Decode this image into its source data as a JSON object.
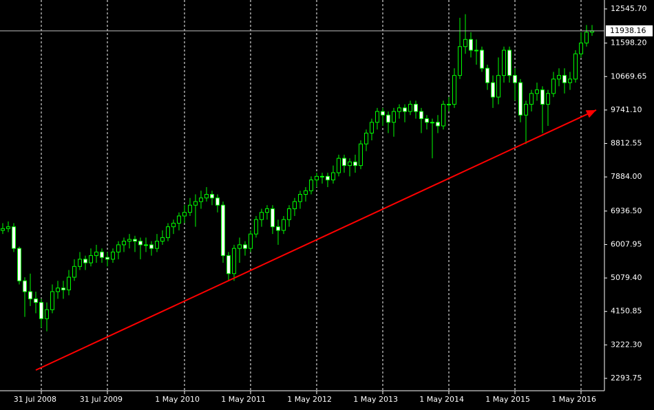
{
  "chart_data": {
    "type": "candlestick",
    "categories": [
      null,
      null,
      null,
      null,
      null,
      null,
      null,
      "31 Jul 2008",
      null,
      null,
      null,
      null,
      null,
      null,
      null,
      null,
      null,
      null,
      null,
      "31 Jul 2009",
      null,
      null,
      null,
      null,
      null,
      null,
      null,
      null,
      null,
      null,
      null,
      null,
      null,
      "1 May 2010",
      null,
      null,
      null,
      null,
      null,
      null,
      null,
      null,
      null,
      null,
      null,
      "1 May 2011",
      null,
      null,
      null,
      null,
      null,
      null,
      null,
      null,
      null,
      null,
      null,
      "1 May 2012",
      null,
      null,
      null,
      null,
      null,
      null,
      null,
      null,
      null,
      null,
      null,
      "1 May 2013",
      null,
      null,
      null,
      null,
      null,
      null,
      null,
      null,
      null,
      null,
      null,
      "1 May 2014",
      null,
      null,
      null,
      null,
      null,
      null,
      null,
      null,
      null,
      null,
      null,
      "1 May 2015",
      null,
      null,
      null,
      null,
      null,
      null,
      null,
      null,
      null,
      null,
      null,
      "1 May 2016",
      null,
      null
    ],
    "open": [
      6400,
      6450,
      6500,
      5900,
      5000,
      4700,
      4500,
      4400,
      3950,
      4200,
      4700,
      4800,
      4750,
      5100,
      5400,
      5600,
      5500,
      5700,
      5800,
      5650,
      5600,
      5800,
      6000,
      6100,
      6150,
      6100,
      6000,
      6000,
      5900,
      6100,
      6200,
      6500,
      6600,
      6800,
      6900,
      7100,
      7200,
      7300,
      7400,
      7300,
      7100,
      5700,
      5200,
      5900,
      6000,
      5900,
      6300,
      6700,
      6900,
      7000,
      6500,
      6400,
      6700,
      7000,
      7200,
      7400,
      7500,
      7800,
      7900,
      7900,
      7800,
      8000,
      8400,
      8200,
      8300,
      8200,
      8800,
      9100,
      9400,
      9700,
      9600,
      9400,
      9700,
      9800,
      9700,
      9900,
      9700,
      9500,
      9400,
      9400,
      9300,
      9900,
      9900,
      10700,
      11500,
      11700,
      11400,
      11400,
      10900,
      10500,
      10100,
      10700,
      11400,
      10700,
      10500,
      9600,
      9900,
      10200,
      10300,
      9900,
      10200,
      10600,
      10700,
      10500,
      10600,
      11300,
      11600,
      11900
    ],
    "high": [
      6600,
      6650,
      6600,
      5950,
      5100,
      5200,
      4700,
      4500,
      4400,
      4900,
      5000,
      5000,
      5300,
      5600,
      5800,
      5700,
      5900,
      6000,
      5900,
      5800,
      5900,
      6100,
      6200,
      6300,
      6250,
      6200,
      6200,
      6100,
      6300,
      6400,
      6600,
      6700,
      6900,
      7100,
      7300,
      7400,
      7500,
      7600,
      7500,
      7400,
      7200,
      5800,
      6000,
      6200,
      6100,
      6400,
      6800,
      7000,
      7100,
      7100,
      6700,
      6800,
      7100,
      7300,
      7500,
      7600,
      7900,
      8000,
      8000,
      8000,
      8200,
      8500,
      8500,
      8400,
      8500,
      8900,
      9200,
      9500,
      9800,
      9800,
      9700,
      9800,
      9900,
      9900,
      10000,
      10000,
      9800,
      9600,
      9500,
      9600,
      10000,
      10100,
      10900,
      12300,
      12400,
      11900,
      11700,
      11500,
      11000,
      10700,
      11200,
      11500,
      11500,
      10900,
      10600,
      10000,
      10300,
      10500,
      10400,
      10300,
      10800,
      10900,
      10900,
      10800,
      11400,
      11900,
      12100,
      12100
    ],
    "low": [
      6300,
      6350,
      5800,
      4900,
      4000,
      4300,
      4100,
      3700,
      3600,
      4100,
      4500,
      4500,
      4600,
      5000,
      5300,
      5300,
      5400,
      5500,
      5500,
      5400,
      5500,
      5600,
      5800,
      5900,
      5800,
      5600,
      5800,
      5700,
      5800,
      6000,
      6100,
      6300,
      6400,
      6600,
      6800,
      6500,
      7000,
      7200,
      7100,
      6900,
      5500,
      5000,
      5000,
      5500,
      5700,
      5800,
      6200,
      6500,
      6700,
      6300,
      6000,
      6300,
      6500,
      6800,
      7000,
      7200,
      7400,
      7600,
      7700,
      7600,
      7700,
      7900,
      8000,
      7900,
      8000,
      8100,
      8600,
      8900,
      9200,
      9300,
      9100,
      9000,
      9500,
      9400,
      9600,
      9500,
      9100,
      9200,
      8400,
      9100,
      9200,
      9700,
      9800,
      10600,
      11300,
      11200,
      11000,
      10800,
      10300,
      9800,
      9900,
      10500,
      10500,
      10000,
      9400,
      8800,
      9700,
      10000,
      9100,
      9300,
      10100,
      10400,
      10200,
      10300,
      10500,
      11200,
      11500,
      11800
    ],
    "close": [
      6450,
      6500,
      5900,
      5000,
      4700,
      4500,
      4400,
      3950,
      4200,
      4700,
      4800,
      4750,
      5100,
      5400,
      5600,
      5500,
      5700,
      5800,
      5650,
      5600,
      5800,
      6000,
      6100,
      6150,
      6100,
      6000,
      6000,
      5900,
      6100,
      6200,
      6500,
      6600,
      6800,
      6900,
      7100,
      7200,
      7300,
      7400,
      7300,
      7100,
      5700,
      5200,
      5900,
      6000,
      5900,
      6300,
      6700,
      6900,
      7000,
      6500,
      6400,
      6700,
      7000,
      7200,
      7400,
      7500,
      7800,
      7900,
      7900,
      7800,
      8000,
      8400,
      8200,
      8300,
      8200,
      8800,
      9100,
      9400,
      9700,
      9600,
      9400,
      9700,
      9800,
      9700,
      9900,
      9700,
      9500,
      9400,
      9400,
      9300,
      9900,
      9900,
      10700,
      11500,
      11700,
      11400,
      11400,
      10900,
      10500,
      10100,
      10700,
      11400,
      10700,
      10500,
      9600,
      9900,
      10200,
      10300,
      9900,
      10200,
      10600,
      10700,
      10500,
      10600,
      11300,
      11600,
      11900,
      11938.16
    ],
    "up_color": "#000000",
    "down_color": "#ffffff",
    "line_color": "#00ff00",
    "ylim": [
      1950,
      12794
    ],
    "yticks": [
      {
        "value": 2293.75,
        "label": "2293.75"
      },
      {
        "value": 3222.3,
        "label": "3222.30"
      },
      {
        "value": 4150.85,
        "label": "4150.85"
      },
      {
        "value": 5079.4,
        "label": "5079.40"
      },
      {
        "value": 6007.95,
        "label": "6007.95"
      },
      {
        "value": 6936.5,
        "label": "6936.50"
      },
      {
        "value": 7884,
        "label": "7884.00"
      },
      {
        "value": 8812.55,
        "label": "8812.55"
      },
      {
        "value": 9741.1,
        "label": "9741.10"
      },
      {
        "value": 10669.65,
        "label": "10669.65"
      },
      {
        "value": 11598.2,
        "label": "11598.20"
      },
      {
        "value": 12545.7,
        "label": "12545.70"
      }
    ],
    "current_price": 11938.16,
    "current_price_color": "#c0c0c0",
    "trendline": {
      "color": "#ff0000",
      "start": [
        6,
        2523
      ],
      "end": [
        107.75,
        9740
      ]
    },
    "grid": true
  }
}
